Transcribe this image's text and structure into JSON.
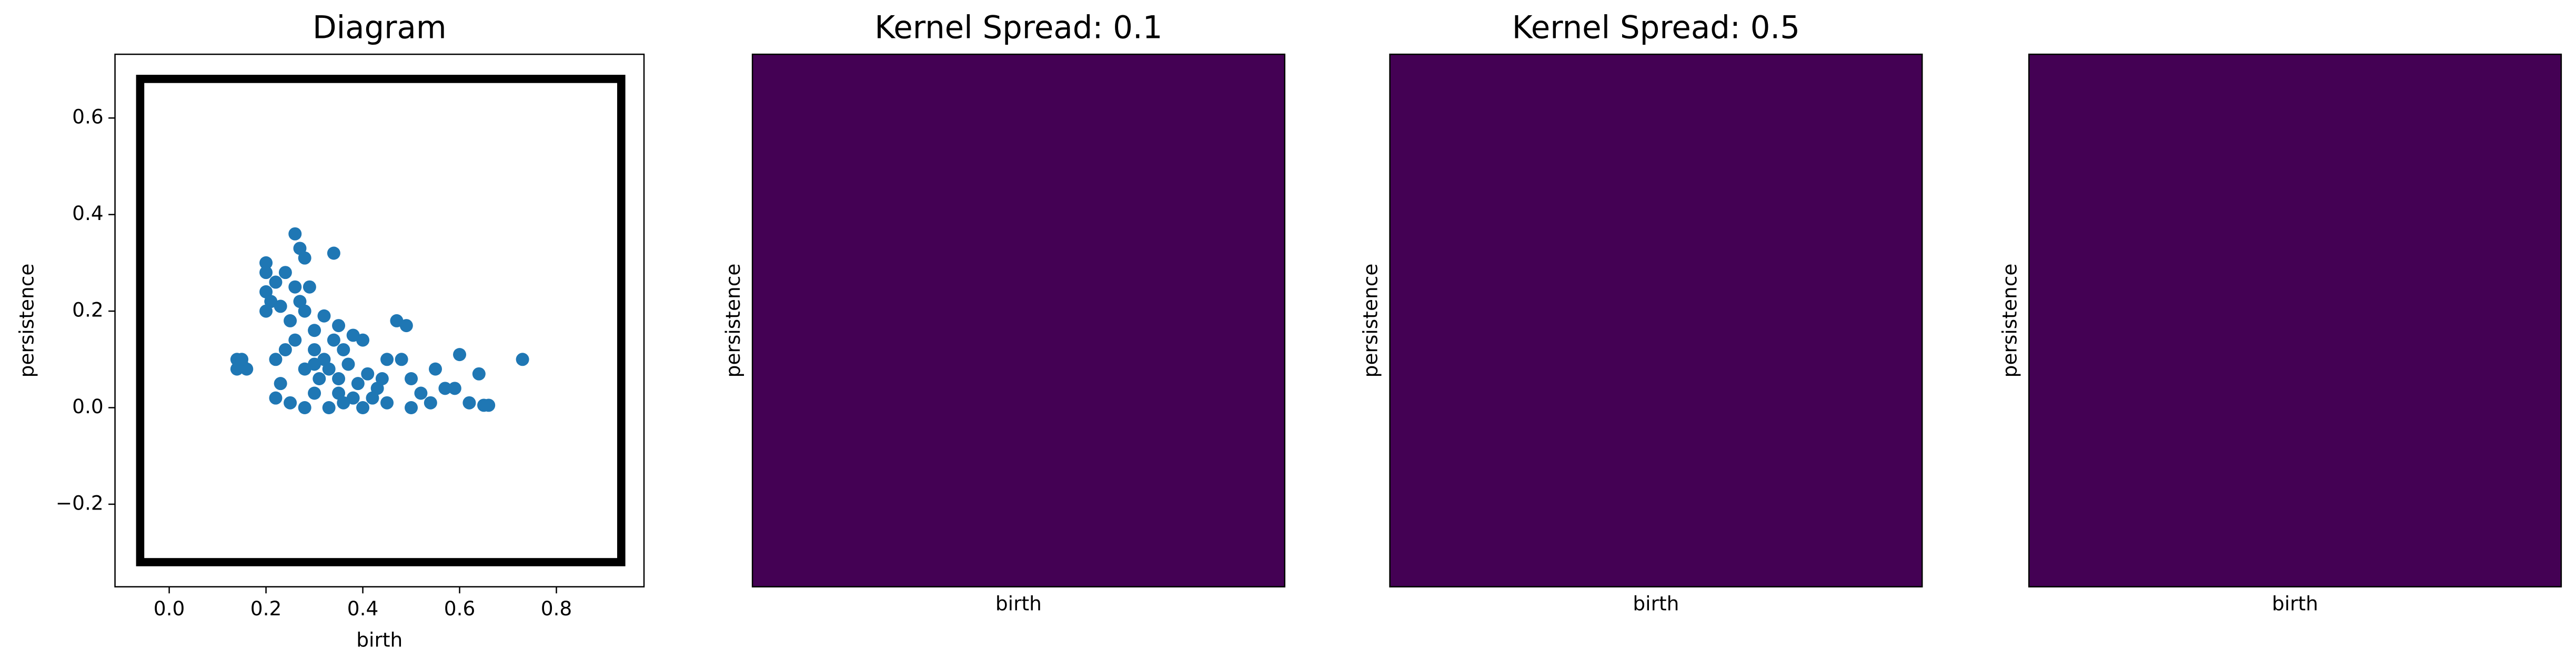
{
  "chart_data": [
    {
      "type": "scatter",
      "title": "Diagram",
      "x_label": "birth",
      "y_label": "persistence",
      "xlim": [
        -0.112,
        0.981
      ],
      "ylim": [
        -0.371,
        0.732
      ],
      "xticks": [
        {
          "value": 0,
          "label": "0.0"
        },
        0.2,
        0.4,
        0.6,
        0.8
      ],
      "yticks": [
        {
          "value": -0.2,
          "label": "−0.2"
        },
        {
          "value": 0,
          "label": "0.0"
        },
        0.2,
        0.4,
        0.6
      ],
      "color": "#1f77b4",
      "frame": {
        "x": [
          -0.06,
          0.934
        ],
        "y": [
          -0.32,
          0.681
        ]
      },
      "x": [
        0.14,
        0.15,
        0.14,
        0.16,
        0.15,
        0.2,
        0.2,
        0.2,
        0.21,
        0.2,
        0.22,
        0.23,
        0.24,
        0.26,
        0.27,
        0.28,
        0.26,
        0.27,
        0.25,
        0.28,
        0.3,
        0.32,
        0.34,
        0.35,
        0.3,
        0.32,
        0.34,
        0.36,
        0.38,
        0.4,
        0.33,
        0.35,
        0.37,
        0.39,
        0.41,
        0.43,
        0.45,
        0.47,
        0.49,
        0.48,
        0.5,
        0.52,
        0.55,
        0.57,
        0.6,
        0.59,
        0.62,
        0.64,
        0.65,
        0.66,
        0.73,
        0.22,
        0.23,
        0.22,
        0.25,
        0.28,
        0.3,
        0.33,
        0.36,
        0.4,
        0.42,
        0.45,
        0.5,
        0.54,
        0.28,
        0.31,
        0.26,
        0.29,
        0.24,
        0.38,
        0.44,
        0.3,
        0.35
      ],
      "values": [
        0.1,
        0.09,
        0.08,
        0.08,
        0.1,
        0.3,
        0.28,
        0.24,
        0.22,
        0.2,
        0.26,
        0.21,
        0.28,
        0.36,
        0.33,
        0.31,
        0.25,
        0.22,
        0.18,
        0.2,
        0.16,
        0.19,
        0.32,
        0.17,
        0.12,
        0.1,
        0.14,
        0.12,
        0.15,
        0.14,
        0.08,
        0.06,
        0.09,
        0.05,
        0.07,
        0.04,
        0.1,
        0.18,
        0.17,
        0.1,
        0.06,
        0.03,
        0.08,
        0.04,
        0.11,
        0.04,
        0.01,
        0.07,
        0.005,
        0.005,
        0.1,
        0.1,
        0.05,
        0.02,
        0.01,
        0.0,
        0.03,
        0.0,
        0.01,
        0.0,
        0.02,
        0.01,
        0.0,
        0.01,
        0.08,
        0.06,
        0.14,
        0.25,
        0.12,
        0.02,
        0.06,
        0.09,
        0.03
      ]
    },
    {
      "type": "image",
      "title": "Kernel Spread: 0.1",
      "x_label": "birth",
      "y_label": "persistence",
      "color": "#440154"
    },
    {
      "type": "image",
      "title": "Kernel Spread: 0.5",
      "x_label": "birth",
      "y_label": "persistence",
      "color": "#440154"
    },
    {
      "type": "image",
      "x_label": "birth",
      "y_label": "persistence",
      "color": "#440154"
    }
  ]
}
